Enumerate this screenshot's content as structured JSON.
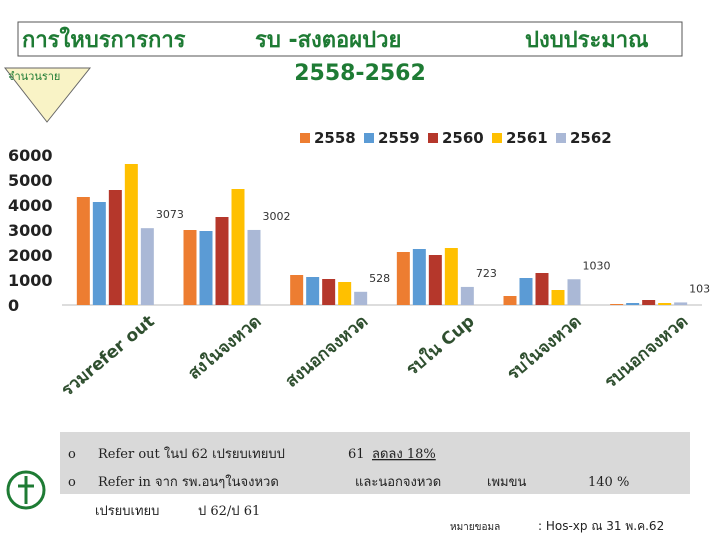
{
  "slide": {
    "title_parts": [
      "การใหบรการการ",
      "รบ -สงตอผปวย",
      "ปงบประมาณ",
      "2558-2562"
    ],
    "unit_label": "จำนวนราย",
    "notes": {
      "line1": [
        "Refer out ในป  62 เปรยบเทยบป",
        "61",
        "ลดลง 18%"
      ],
      "line2": [
        "Refer in  จาก รพ.อนๆในจงหวด",
        "และนอกจงหวด",
        "เพมขน",
        "140 %"
      ],
      "line3": [
        "เปรยบเทยบ",
        "ป  62/ป  61"
      ]
    },
    "source": [
      "หมายขอมล",
      ":  Hos-xp  ณ 31 พ.ค.62"
    ]
  },
  "chart_data": {
    "type": "bar",
    "categories": [
      "รวมrefer out",
      "สงในจงหวด",
      "สงนอกจงหวด",
      "รบใน Cup",
      "รบในจงหวด",
      "รบนอกจงหวด"
    ],
    "series": [
      {
        "name": "2558",
        "color": "#ED7D31",
        "values": [
          4320,
          3000,
          1200,
          2120,
          360,
          40
        ]
      },
      {
        "name": "2559",
        "color": "#5B9BD5",
        "values": [
          4120,
          2960,
          1120,
          2240,
          1080,
          80
        ]
      },
      {
        "name": "2560",
        "color": "#B5372B",
        "values": [
          4600,
          3520,
          1040,
          2000,
          1280,
          200
        ]
      },
      {
        "name": "2561",
        "color": "#FFC000",
        "values": [
          5640,
          4640,
          920,
          2280,
          600,
          80
        ]
      },
      {
        "name": "2562",
        "color": "#AAB8D6",
        "values": [
          3073,
          3002,
          528,
          723,
          1030,
          103
        ]
      }
    ],
    "labeled_series": 4,
    "ylim": [
      0,
      6000
    ],
    "yticks": [
      0,
      1000,
      2000,
      3000,
      4000,
      5000,
      6000
    ]
  }
}
